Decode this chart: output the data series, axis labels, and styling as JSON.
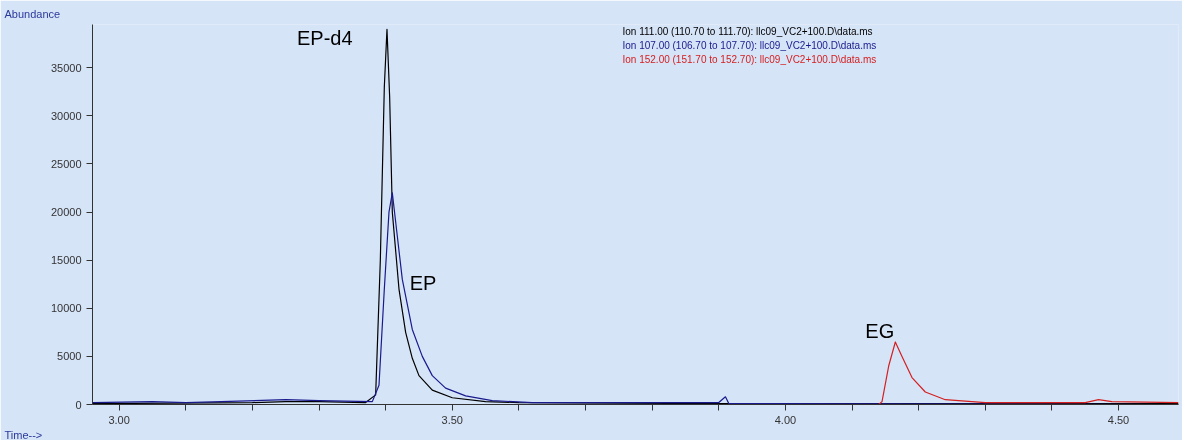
{
  "chart_data": {
    "type": "line",
    "xlabel": "Time-->",
    "ylabel": "Abundance",
    "xlim": [
      2.96,
      4.59
    ],
    "ylim": [
      0,
      39500
    ],
    "xticks": [
      {
        "value": 3.0,
        "label": "3.00"
      },
      {
        "value": 3.1,
        "label": null
      },
      {
        "value": 3.2,
        "label": null
      },
      {
        "value": 3.3,
        "label": null
      },
      {
        "value": 3.4,
        "label": null
      },
      {
        "value": 3.5,
        "label": "3.50"
      },
      {
        "value": 3.6,
        "label": null
      },
      {
        "value": 3.7,
        "label": null
      },
      {
        "value": 3.8,
        "label": null
      },
      {
        "value": 3.9,
        "label": null
      },
      {
        "value": 4.0,
        "label": "4.00"
      },
      {
        "value": 4.1,
        "label": null
      },
      {
        "value": 4.2,
        "label": null
      },
      {
        "value": 4.3,
        "label": null
      },
      {
        "value": 4.4,
        "label": null
      },
      {
        "value": 4.5,
        "label": "4.50"
      }
    ],
    "yticks": [
      0,
      5000,
      10000,
      15000,
      20000,
      25000,
      30000,
      35000
    ],
    "grid": false,
    "legend": "top right",
    "marker": "none",
    "line_style": "solid",
    "series": [
      {
        "name": "Ion 111.00 (110.70 to 111.70): llc09_VC2+100.D\\data.ms",
        "color": "#000000",
        "x": [
          2.96,
          3.2,
          3.25,
          3.3,
          3.37,
          3.385,
          3.392,
          3.398,
          3.402,
          3.406,
          3.41,
          3.42,
          3.43,
          3.44,
          3.45,
          3.47,
          3.5,
          3.55,
          3.6,
          3.9,
          4.59
        ],
        "values": [
          100,
          200,
          300,
          300,
          200,
          1000,
          15000,
          33000,
          39000,
          32000,
          20000,
          12000,
          7500,
          4800,
          3000,
          1500,
          700,
          300,
          200,
          100,
          100
        ]
      },
      {
        "name": "Ion 107.00 (106.70 to 107.70): llc09_VC2+100.D\\data.ms",
        "color": "#1a1a8c",
        "x": [
          2.96,
          3.05,
          3.1,
          3.25,
          3.3,
          3.38,
          3.39,
          3.398,
          3.405,
          3.41,
          3.415,
          3.425,
          3.44,
          3.455,
          3.47,
          3.49,
          3.52,
          3.56,
          3.62,
          3.9,
          3.91,
          3.915,
          4.59
        ],
        "values": [
          200,
          300,
          200,
          500,
          400,
          300,
          2000,
          12000,
          20000,
          22000,
          19000,
          13000,
          7800,
          5000,
          3000,
          1700,
          900,
          400,
          200,
          200,
          800,
          100,
          0
        ]
      },
      {
        "name": "Ion 152.00 (151.70 to 152.70): llc09_VC2+100.D\\data.ms",
        "color": "#d42020",
        "x": [
          4.14,
          4.145,
          4.155,
          4.165,
          4.175,
          4.19,
          4.21,
          4.24,
          4.3,
          4.45,
          4.47,
          4.49,
          4.59
        ],
        "values": [
          0,
          300,
          4000,
          6500,
          5000,
          2800,
          1300,
          500,
          200,
          200,
          500,
          300,
          200
        ]
      }
    ],
    "annotations": [
      {
        "text": "EP-d4",
        "x": 3.402,
        "y": 39000
      },
      {
        "text": "EP",
        "x": 3.43,
        "y": 13000
      },
      {
        "text": "EG",
        "x": 4.165,
        "y": 6500
      }
    ]
  }
}
